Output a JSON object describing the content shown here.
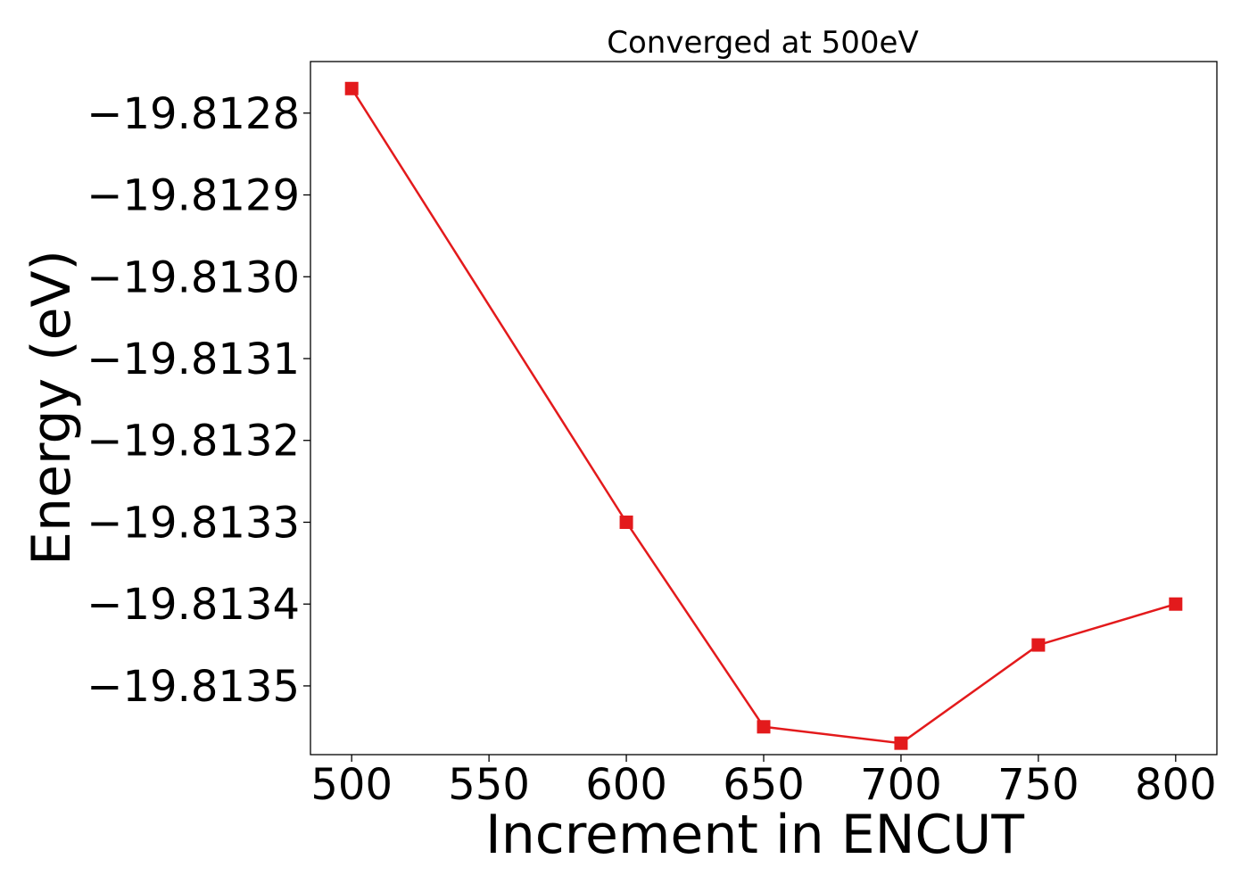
{
  "chart_data": {
    "type": "line",
    "title": "Converged at 500eV",
    "xlabel": "Increment in ENCUT",
    "ylabel": "Energy (eV)",
    "x": [
      500,
      600,
      650,
      700,
      750,
      800
    ],
    "series": [
      {
        "values": [
          -19.81277,
          -19.8133,
          -19.81355,
          -19.81357,
          -19.81345,
          -19.8134
        ],
        "color": "#e31a1c",
        "marker": "square"
      }
    ],
    "xticks": [
      500,
      550,
      600,
      650,
      700,
      750,
      800
    ],
    "xtick_labels": [
      "500",
      "550",
      "600",
      "650",
      "700",
      "750",
      "800"
    ],
    "yticks": [
      -19.8128,
      -19.8129,
      -19.813,
      -19.8131,
      -19.8132,
      -19.8133,
      -19.8134,
      -19.8135
    ],
    "ytick_labels": [
      "−19.8128",
      "−19.8129",
      "−19.8130",
      "−19.8131",
      "−19.8132",
      "−19.8133",
      "−19.8134",
      "−19.8135"
    ],
    "xlim": [
      485,
      815
    ],
    "ylim": [
      -19.813584,
      -19.812737
    ],
    "grid": false,
    "legend": false
  }
}
